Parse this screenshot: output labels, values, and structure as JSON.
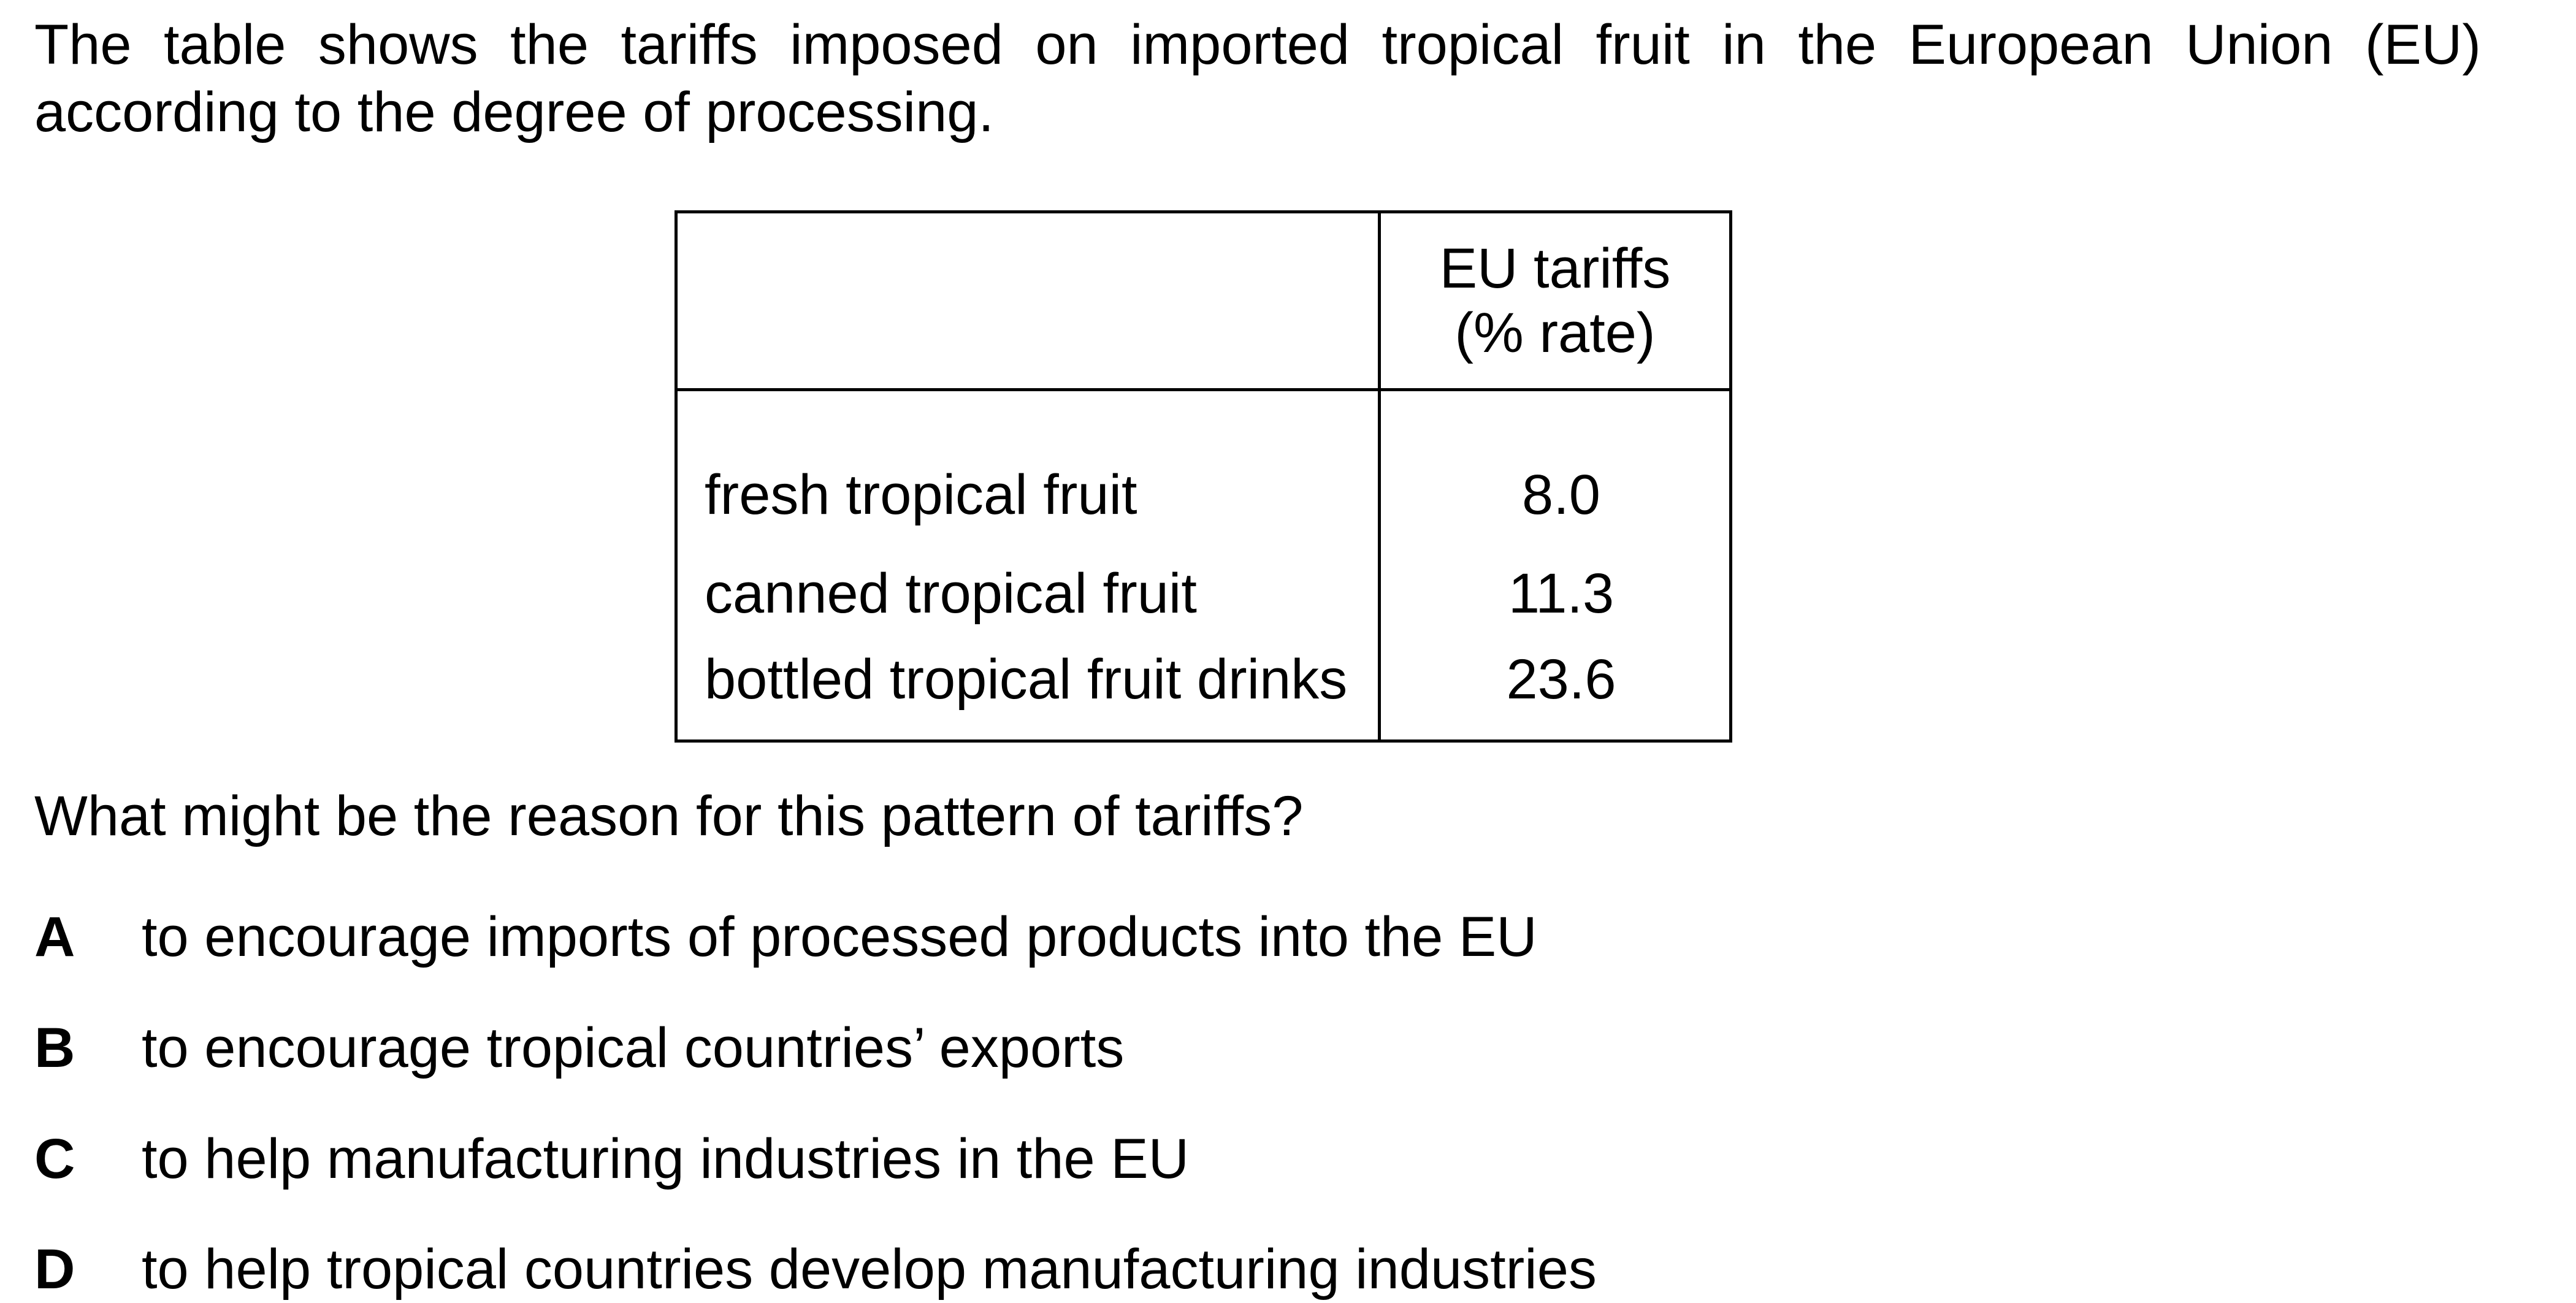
{
  "intro": "The table shows the tariffs imposed on imported tropical fruit in the European Union (EU) according to the degree of processing.",
  "table": {
    "header": {
      "item": "",
      "rate_line1": "EU tariffs",
      "rate_line2": "(% rate)"
    },
    "rows": [
      {
        "item": "fresh tropical fruit",
        "rate": "8.0"
      },
      {
        "item": "canned tropical fruit",
        "rate": "11.3"
      },
      {
        "item": "bottled tropical fruit drinks",
        "rate": "23.6"
      }
    ]
  },
  "question": "What might be the reason for this pattern of tariffs?",
  "options": [
    {
      "letter": "A",
      "text": "to encourage imports of processed products into the EU"
    },
    {
      "letter": "B",
      "text": "to encourage tropical countries’ exports"
    },
    {
      "letter": "C",
      "text": "to help manufacturing industries in the EU"
    },
    {
      "letter": "D",
      "text": "to help tropical countries develop manufacturing industries"
    }
  ]
}
